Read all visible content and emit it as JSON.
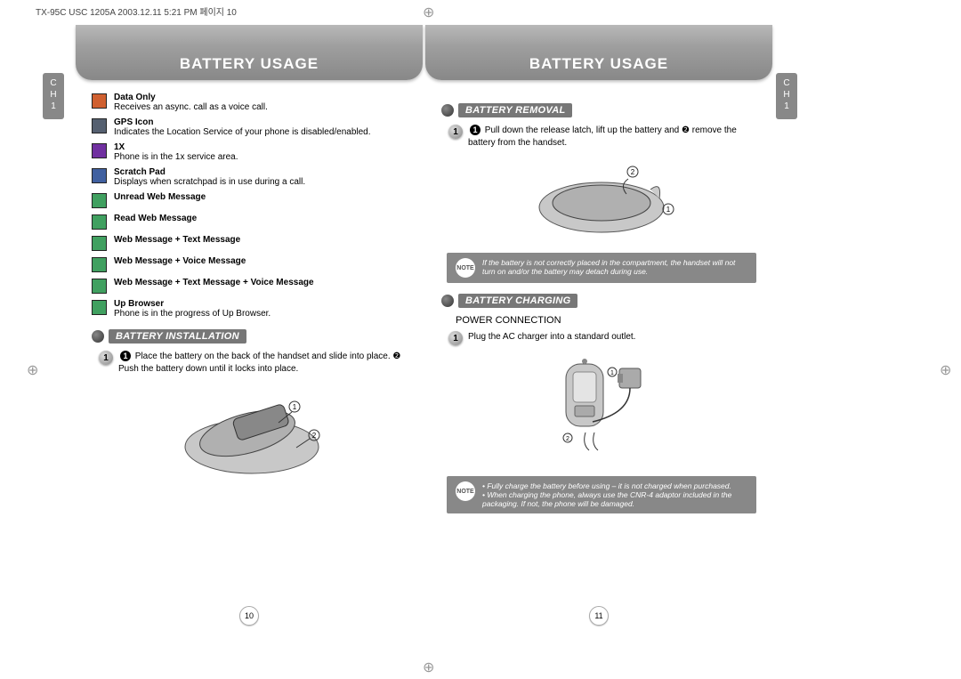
{
  "print_header": "TX-95C USC 1205A  2003.12.11  5:21 PM  페이지 10",
  "title": "BATTERY USAGE",
  "side_tab": {
    "line1": "C",
    "line2": "H",
    "num": "1"
  },
  "icons": [
    {
      "name": "Data Only",
      "desc": "Receives an async. call as a voice call.",
      "color": "#d06030"
    },
    {
      "name": "GPS Icon",
      "desc": "Indicates the Location Service of your phone is disabled/enabled.",
      "color": "#556070"
    },
    {
      "name": "1X",
      "desc": "Phone is in the 1x service area.",
      "color": "#7030a0"
    },
    {
      "name": "Scratch Pad",
      "desc": "Displays when scratchpad is in use during a call.",
      "color": "#4060a0"
    },
    {
      "name": "Unread Web Message",
      "desc": "",
      "color": "#40a060"
    },
    {
      "name": "Read Web Message",
      "desc": "",
      "color": "#40a060"
    },
    {
      "name": "Web Message + Text Message",
      "desc": "",
      "color": "#40a060"
    },
    {
      "name": "Web Message + Voice Message",
      "desc": "",
      "color": "#40a060"
    },
    {
      "name": "Web Message + Text Message + Voice Message",
      "desc": "",
      "color": "#40a060"
    },
    {
      "name": "Up Browser",
      "desc": "Phone is in the progress of Up Browser.",
      "color": "#40a060"
    }
  ],
  "section_install": "BATTERY INSTALLATION",
  "install_step": "Place the battery on the back of the handset and slide into place. ❷ Push the battery down until it locks into place.",
  "section_remove": "BATTERY REMOVAL",
  "remove_step": "Pull down the release latch, lift up the battery and ❷ remove the battery from the handset.",
  "note1": "If the battery is not correctly placed in the compartment, the handset will not turn on and/or the battery may detach during use.",
  "section_charge": "BATTERY CHARGING",
  "power_conn": "POWER CONNECTION",
  "charge_step": "Plug the AC charger into a standard outlet.",
  "note2a": "Fully charge the battery before using – it is not charged when purchased.",
  "note2b": "When charging the phone, always use the CNR-4 adaptor included in the packaging. If not, the phone will be damaged.",
  "page_left": "10",
  "page_right": "11",
  "note_label": "NOTE"
}
